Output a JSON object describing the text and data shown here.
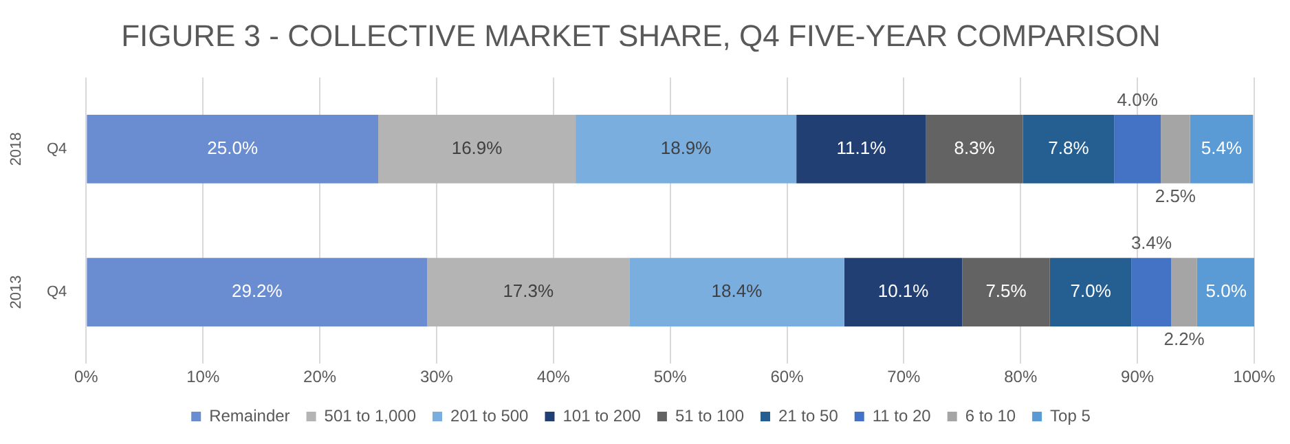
{
  "chart_data": {
    "type": "bar",
    "orientation": "horizontal",
    "stacked": true,
    "title": "FIGURE 3 - COLLECTIVE MARKET SHARE, Q4 FIVE-YEAR COMPARISON",
    "categories": [
      "Q4",
      "Q4"
    ],
    "annotations": [
      "2018",
      "2013"
    ],
    "series": [
      {
        "name": "Remainder",
        "color": "#6a8cd0",
        "values": [
          25.0,
          29.2
        ],
        "value_labels": [
          "25.0%",
          "29.2%"
        ]
      },
      {
        "name": "501 to 1,000",
        "color": "#b4b4b4",
        "values": [
          16.9,
          17.3
        ],
        "value_labels": [
          "16.9%",
          "17.3%"
        ]
      },
      {
        "name": "201 to 500",
        "color": "#7aaedf",
        "values": [
          18.9,
          18.4
        ],
        "value_labels": [
          "18.9%",
          "18.4%"
        ]
      },
      {
        "name": "101 to 200",
        "color": "#223f73",
        "values": [
          11.1,
          10.1
        ],
        "value_labels": [
          "11.1%",
          "10.1%"
        ]
      },
      {
        "name": "51 to 100",
        "color": "#636363",
        "values": [
          8.3,
          7.5
        ],
        "value_labels": [
          "8.3%",
          "7.5%"
        ]
      },
      {
        "name": "21 to 50",
        "color": "#255e91",
        "values": [
          7.8,
          7.0
        ],
        "value_labels": [
          "7.8%",
          "7.0%"
        ]
      },
      {
        "name": "11 to 20",
        "color": "#4472c4",
        "values": [
          4.0,
          3.4
        ],
        "value_labels": [
          "4.0%",
          "3.4%"
        ]
      },
      {
        "name": "6 to 10",
        "color": "#a5a5a5",
        "values": [
          2.5,
          2.2
        ],
        "value_labels": [
          "2.5%",
          "2.2%"
        ]
      },
      {
        "name": "Top 5",
        "color": "#5b9bd5",
        "values": [
          5.4,
          5.0
        ],
        "value_labels": [
          "5.4%",
          "5.0%"
        ]
      }
    ],
    "xlim": [
      0,
      100
    ],
    "xticks": [
      {
        "value": 0,
        "label": "0%"
      },
      {
        "value": 10,
        "label": "10%"
      },
      {
        "value": 20,
        "label": "20%"
      },
      {
        "value": 30,
        "label": "30%"
      },
      {
        "value": 40,
        "label": "40%"
      },
      {
        "value": 50,
        "label": "50%"
      },
      {
        "value": 60,
        "label": "60%"
      },
      {
        "value": 70,
        "label": "70%"
      },
      {
        "value": 80,
        "label": "80%"
      },
      {
        "value": 90,
        "label": "90%"
      },
      {
        "value": 100,
        "label": "100%"
      }
    ],
    "grid": "x",
    "legend": "bottom"
  }
}
